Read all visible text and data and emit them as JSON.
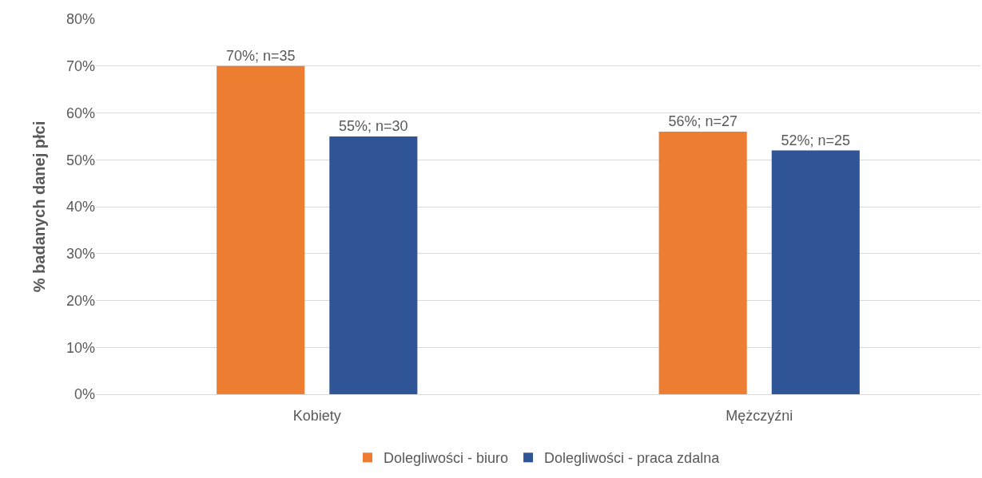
{
  "chart_data": {
    "type": "bar",
    "ylabel": "% badanych danej płci",
    "categories": [
      "Kobiety",
      "Mężczyźni"
    ],
    "series": [
      {
        "name": "Dolegliwości - biuro",
        "color": "#ed7d31",
        "values": [
          70,
          56
        ],
        "value_labels": [
          "70%; n=35",
          "56%; n=27"
        ]
      },
      {
        "name": "Dolegliwości - praca zdalna",
        "color": "#2f5597",
        "values": [
          55,
          52
        ],
        "value_labels": [
          "55%; n=30",
          "52%; n=25"
        ]
      }
    ],
    "ylim": [
      0,
      80
    ],
    "yticks": [
      {
        "value": 0,
        "label": "0%"
      },
      {
        "value": 10,
        "label": "10%"
      },
      {
        "value": 20,
        "label": "20%"
      },
      {
        "value": 30,
        "label": "30%"
      },
      {
        "value": 40,
        "label": "40%"
      },
      {
        "value": 50,
        "label": "50%"
      },
      {
        "value": 60,
        "label": "60%"
      },
      {
        "value": 70,
        "label": "70%"
      },
      {
        "value": 80,
        "label": "80%"
      }
    ],
    "grid": "y",
    "legend": "bottom"
  }
}
